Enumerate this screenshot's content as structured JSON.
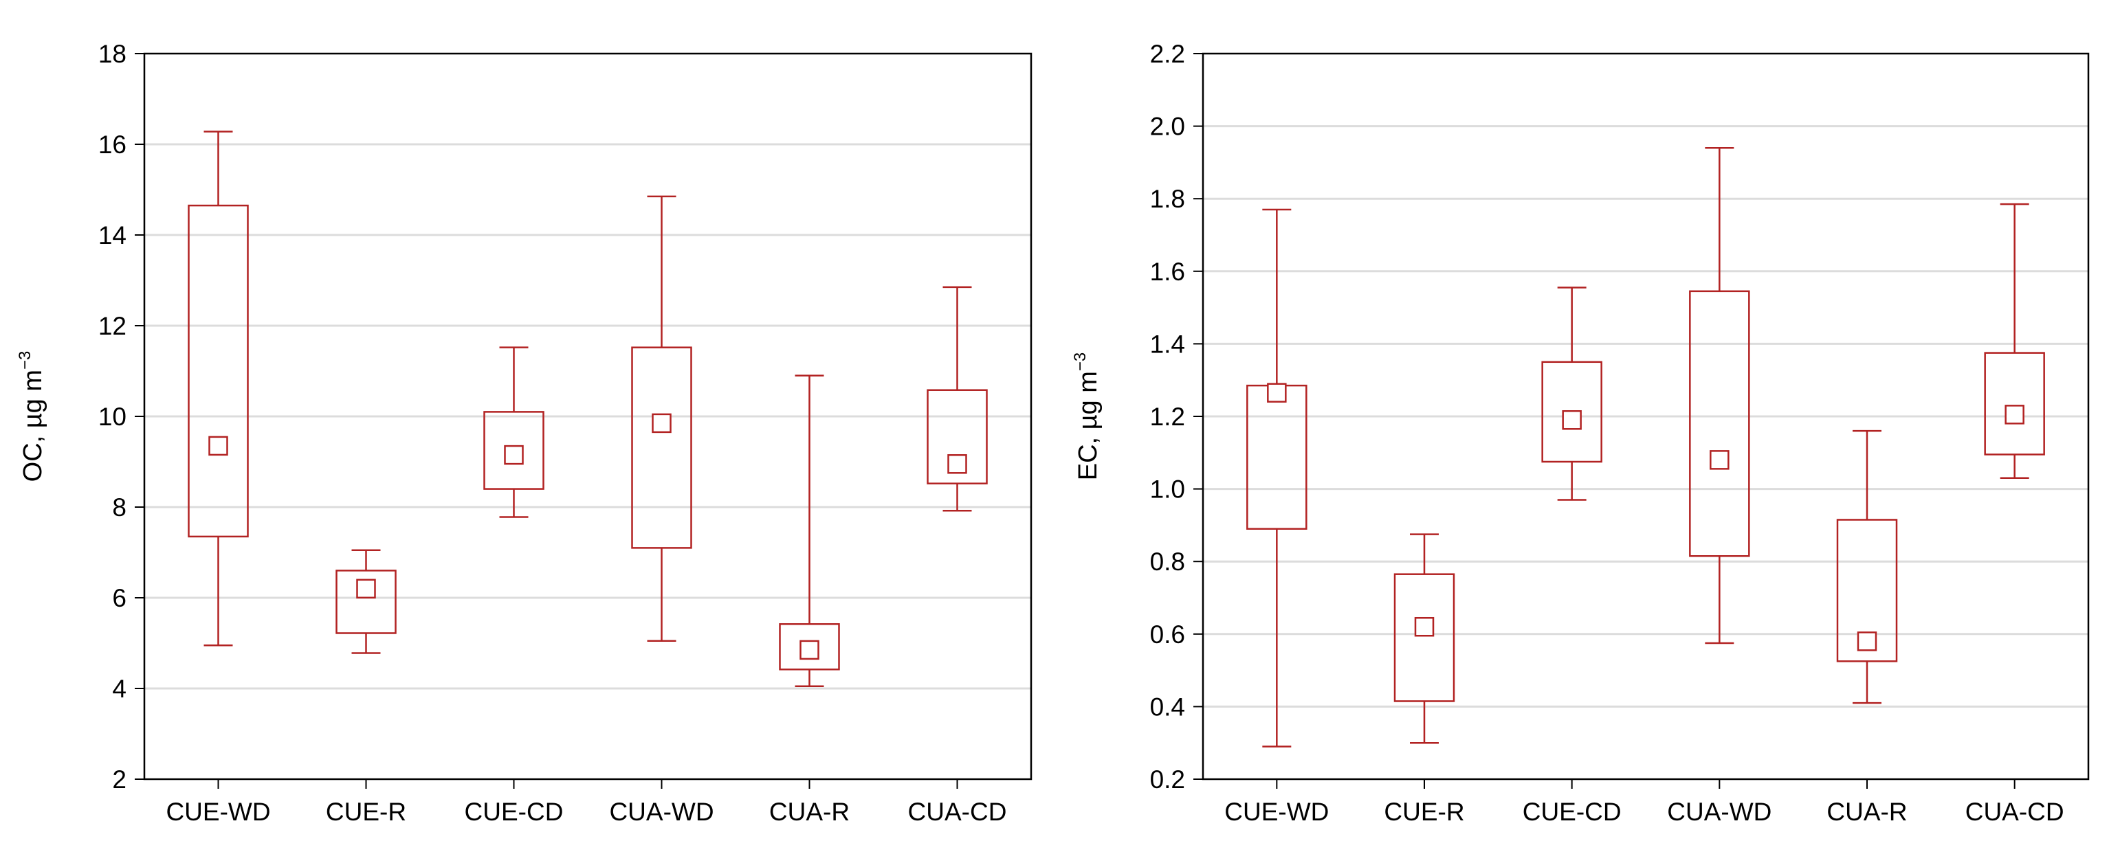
{
  "chart_data": [
    {
      "type": "box",
      "panel": "left",
      "ylabel": "OC, µg m",
      "ylabel_superscript": "−3",
      "ylim": [
        2,
        18
      ],
      "yticks": [
        2,
        4,
        6,
        8,
        10,
        12,
        14,
        16,
        18
      ],
      "categories": [
        "CUE-WD",
        "CUE-R",
        "CUE-CD",
        "CUA-WD",
        "CUA-R",
        "CUA-CD"
      ],
      "boxes": [
        {
          "whisker_low": 4.95,
          "q1": 7.35,
          "median": 9.35,
          "q3": 14.65,
          "whisker_high": 16.28
        },
        {
          "whisker_low": 4.78,
          "q1": 5.22,
          "median": 6.2,
          "q3": 6.6,
          "whisker_high": 7.05
        },
        {
          "whisker_low": 7.78,
          "q1": 8.4,
          "median": 9.15,
          "q3": 10.1,
          "whisker_high": 11.52
        },
        {
          "whisker_low": 5.05,
          "q1": 7.1,
          "median": 9.85,
          "q3": 11.52,
          "whisker_high": 14.85
        },
        {
          "whisker_low": 4.05,
          "q1": 4.42,
          "median": 4.85,
          "q3": 5.42,
          "whisker_high": 10.9
        },
        {
          "whisker_low": 7.92,
          "q1": 8.52,
          "median": 8.95,
          "q3": 10.58,
          "whisker_high": 12.85
        }
      ],
      "color": "#b22222",
      "grid": true
    },
    {
      "type": "box",
      "panel": "right",
      "ylabel": "EC, µg m",
      "ylabel_superscript": "−3",
      "ylim": [
        0.2,
        2.2
      ],
      "yticks": [
        0.2,
        0.4,
        0.6,
        0.8,
        1.0,
        1.2,
        1.4,
        1.6,
        1.8,
        2.0,
        2.2
      ],
      "ytick_labels": [
        "0.2",
        "0.4",
        "0.6",
        "0.8",
        "1.0",
        "1.2",
        "1.4",
        "1.6",
        "1.8",
        "2.0",
        "2.2"
      ],
      "categories": [
        "CUE-WD",
        "CUE-R",
        "CUE-CD",
        "CUA-WD",
        "CUA-R",
        "CUA-CD"
      ],
      "boxes": [
        {
          "whisker_low": 0.29,
          "q1": 0.89,
          "median": 1.265,
          "q3": 1.285,
          "whisker_high": 1.77
        },
        {
          "whisker_low": 0.3,
          "q1": 0.415,
          "median": 0.62,
          "q3": 0.765,
          "whisker_high": 0.875
        },
        {
          "whisker_low": 0.97,
          "q1": 1.075,
          "median": 1.19,
          "q3": 1.35,
          "whisker_high": 1.555
        },
        {
          "whisker_low": 0.575,
          "q1": 0.815,
          "median": 1.08,
          "q3": 1.545,
          "whisker_high": 1.94
        },
        {
          "whisker_low": 0.41,
          "q1": 0.525,
          "median": 0.58,
          "q3": 0.915,
          "whisker_high": 1.16
        },
        {
          "whisker_low": 1.03,
          "q1": 1.095,
          "median": 1.205,
          "q3": 1.375,
          "whisker_high": 1.785
        }
      ],
      "color": "#b22222",
      "grid": true
    }
  ]
}
